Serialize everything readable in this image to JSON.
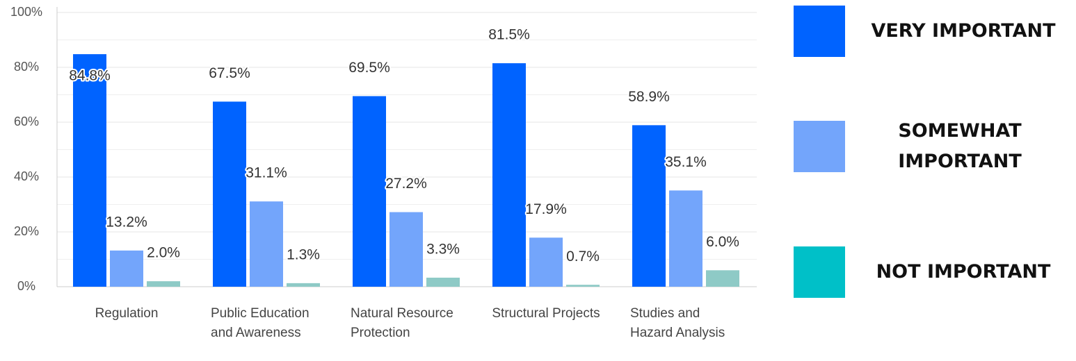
{
  "chart_data": {
    "type": "bar",
    "categories": [
      "Regulation",
      "Public Education and Awareness",
      "Natural Resource Protection",
      "Structural Projects",
      "Studies and Hazard Analysis"
    ],
    "series": [
      {
        "name": "VERY IMPORTANT",
        "color": "#0063ff",
        "legend_color": "#0063ff",
        "values": [
          84.8,
          67.5,
          69.5,
          81.5,
          58.9
        ],
        "value_labels": [
          "84.8%",
          "67.5%",
          "69.5%",
          "81.5%",
          "58.9%"
        ]
      },
      {
        "name": "SOMEWHAT IMPORTANT",
        "color": "#73a5fb",
        "legend_color": "#73a5fb",
        "values": [
          13.2,
          31.1,
          27.2,
          17.9,
          35.1
        ],
        "value_labels": [
          "13.2%",
          "31.1%",
          "27.2%",
          "17.9%",
          "35.1%"
        ]
      },
      {
        "name": "NOT IMPORTANT",
        "color": "#8ecac6",
        "legend_color": "#00c0c8",
        "values": [
          2.0,
          1.3,
          3.3,
          0.7,
          6.0
        ],
        "value_labels": [
          "2.0%",
          "1.3%",
          "3.3%",
          "0.7%",
          "6.0%"
        ]
      }
    ],
    "ylim": [
      0,
      100
    ],
    "yticks": [
      {
        "value": 0,
        "label": "0%"
      },
      {
        "value": 20,
        "label": "20%"
      },
      {
        "value": 40,
        "label": "40%"
      },
      {
        "value": 60,
        "label": "60%"
      },
      {
        "value": 80,
        "label": "80%"
      },
      {
        "value": 100,
        "label": "100%"
      }
    ],
    "minor_yticks": [
      10,
      30,
      50,
      70,
      90
    ],
    "grid": true,
    "legend": "right"
  }
}
